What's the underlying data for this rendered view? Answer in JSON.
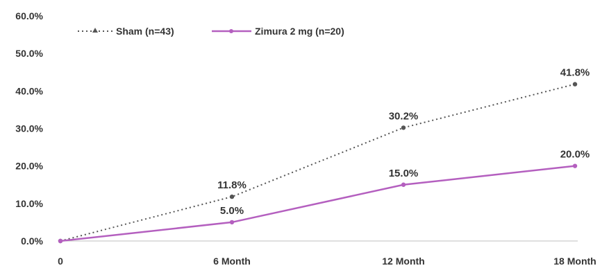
{
  "chart_data": {
    "type": "line",
    "categories": [
      "0",
      "6 Month",
      "12 Month",
      "18 Month"
    ],
    "ylim": [
      0,
      60
    ],
    "y_ticks": [
      "0.0%",
      "10.0%",
      "20.0%",
      "30.0%",
      "40.0%",
      "50.0%",
      "60.0%"
    ],
    "grid": false,
    "legend_position": "top-left",
    "series": [
      {
        "name": "Sham (n=43)",
        "values": [
          0,
          11.8,
          30.2,
          41.8
        ],
        "labels": [
          "",
          "11.8%",
          "30.2%",
          "41.8%"
        ],
        "color": "#555555",
        "line_style": "dotted"
      },
      {
        "name": "Zimura 2 mg (n=20)",
        "values": [
          0,
          5.0,
          15.0,
          20.0
        ],
        "labels": [
          "",
          "5.0%",
          "15.0%",
          "20.0%"
        ],
        "color": "#b45fbf",
        "line_style": "solid"
      }
    ]
  }
}
